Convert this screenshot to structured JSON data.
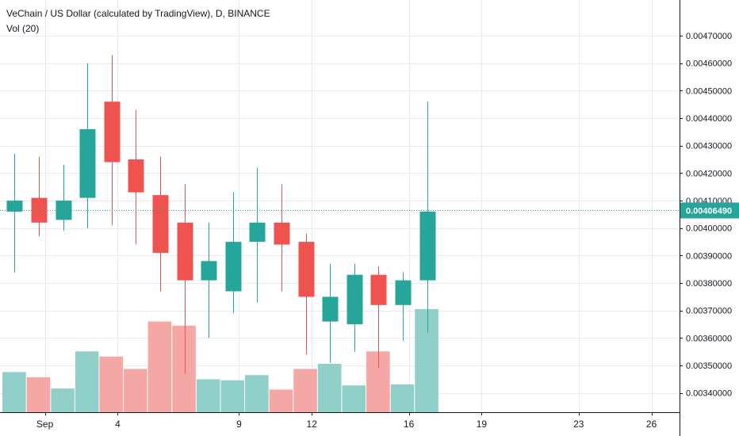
{
  "chart_data": {
    "type": "candlestick",
    "title": "VeChain / US Dollar (calculated by TradingView), D, BINANCE",
    "volume_indicator": "Vol (20)",
    "x_ticks": [
      {
        "day": 2,
        "label": "Sep"
      },
      {
        "day": 5,
        "label": "4"
      },
      {
        "day": 10,
        "label": "9"
      },
      {
        "day": 13,
        "label": "12"
      },
      {
        "day": 17,
        "label": "16"
      },
      {
        "day": 20,
        "label": "19"
      },
      {
        "day": 24,
        "label": "23"
      },
      {
        "day": 27,
        "label": "26"
      }
    ],
    "y_ticks": [
      0.0034,
      0.0035,
      0.0036,
      0.0037,
      0.0038,
      0.0039,
      0.004,
      0.0041,
      0.0042,
      0.0043,
      0.0044,
      0.0045,
      0.0046,
      0.0047
    ],
    "ylim": [
      0.00333,
      0.00483
    ],
    "xlim": [
      0.15,
      28.1
    ],
    "price_format_decimals": 8,
    "last_price": 0.0040649,
    "last_price_label": "0.00406490",
    "candles": [
      {
        "day": 0.75,
        "open": 0.00406,
        "high": 0.00427,
        "low": 0.00384,
        "close": 0.0041
      },
      {
        "day": 1.75,
        "open": 0.00411,
        "high": 0.00426,
        "low": 0.00397,
        "close": 0.00402
      },
      {
        "day": 2.75,
        "open": 0.00403,
        "high": 0.00423,
        "low": 0.00399,
        "close": 0.0041
      },
      {
        "day": 3.75,
        "open": 0.00411,
        "high": 0.0046,
        "low": 0.004,
        "close": 0.00436
      },
      {
        "day": 4.75,
        "open": 0.00446,
        "high": 0.00463,
        "low": 0.00401,
        "close": 0.00424
      },
      {
        "day": 5.75,
        "open": 0.00425,
        "high": 0.00443,
        "low": 0.00394,
        "close": 0.00413
      },
      {
        "day": 6.75,
        "open": 0.00412,
        "high": 0.00426,
        "low": 0.00377,
        "close": 0.00391
      },
      {
        "day": 7.75,
        "open": 0.00402,
        "high": 0.00416,
        "low": 0.00347,
        "close": 0.00381
      },
      {
        "day": 8.75,
        "open": 0.00381,
        "high": 0.00402,
        "low": 0.0036,
        "close": 0.00388
      },
      {
        "day": 9.75,
        "open": 0.00377,
        "high": 0.00413,
        "low": 0.00369,
        "close": 0.00395
      },
      {
        "day": 10.75,
        "open": 0.00395,
        "high": 0.00422,
        "low": 0.00373,
        "close": 0.00402
      },
      {
        "day": 11.75,
        "open": 0.00402,
        "high": 0.00416,
        "low": 0.00377,
        "close": 0.00394
      },
      {
        "day": 12.75,
        "open": 0.00395,
        "high": 0.00398,
        "low": 0.00354,
        "close": 0.00375
      },
      {
        "day": 13.75,
        "open": 0.00366,
        "high": 0.00387,
        "low": 0.00351,
        "close": 0.00375
      },
      {
        "day": 14.75,
        "open": 0.00365,
        "high": 0.00387,
        "low": 0.00355,
        "close": 0.00383
      },
      {
        "day": 15.75,
        "open": 0.00383,
        "high": 0.00386,
        "low": 0.00349,
        "close": 0.00372
      },
      {
        "day": 16.75,
        "open": 0.00372,
        "high": 0.00384,
        "low": 0.00359,
        "close": 0.00381
      },
      {
        "day": 17.75,
        "open": 0.00381,
        "high": 0.00446,
        "low": 0.00362,
        "close": 0.00406
      }
    ],
    "volume": {
      "relative_heights": [
        0.39,
        0.34,
        0.23,
        0.59,
        0.54,
        0.42,
        0.88,
        0.84,
        0.32,
        0.31,
        0.36,
        0.22,
        0.42,
        0.47,
        0.26,
        0.59,
        0.27,
        1.0
      ]
    },
    "colors": {
      "up": "#26a69a",
      "down": "#ef5350",
      "volume_up": "#91d0c9",
      "volume_down": "#f5a7a6",
      "grid": "#e9eaee",
      "last_price_line": "#26a69a",
      "price_label_bg": "#26a69a",
      "price_label_text": "#ffffff",
      "axis_text": "#131722"
    },
    "grid": true,
    "legend_position": "top-left"
  }
}
